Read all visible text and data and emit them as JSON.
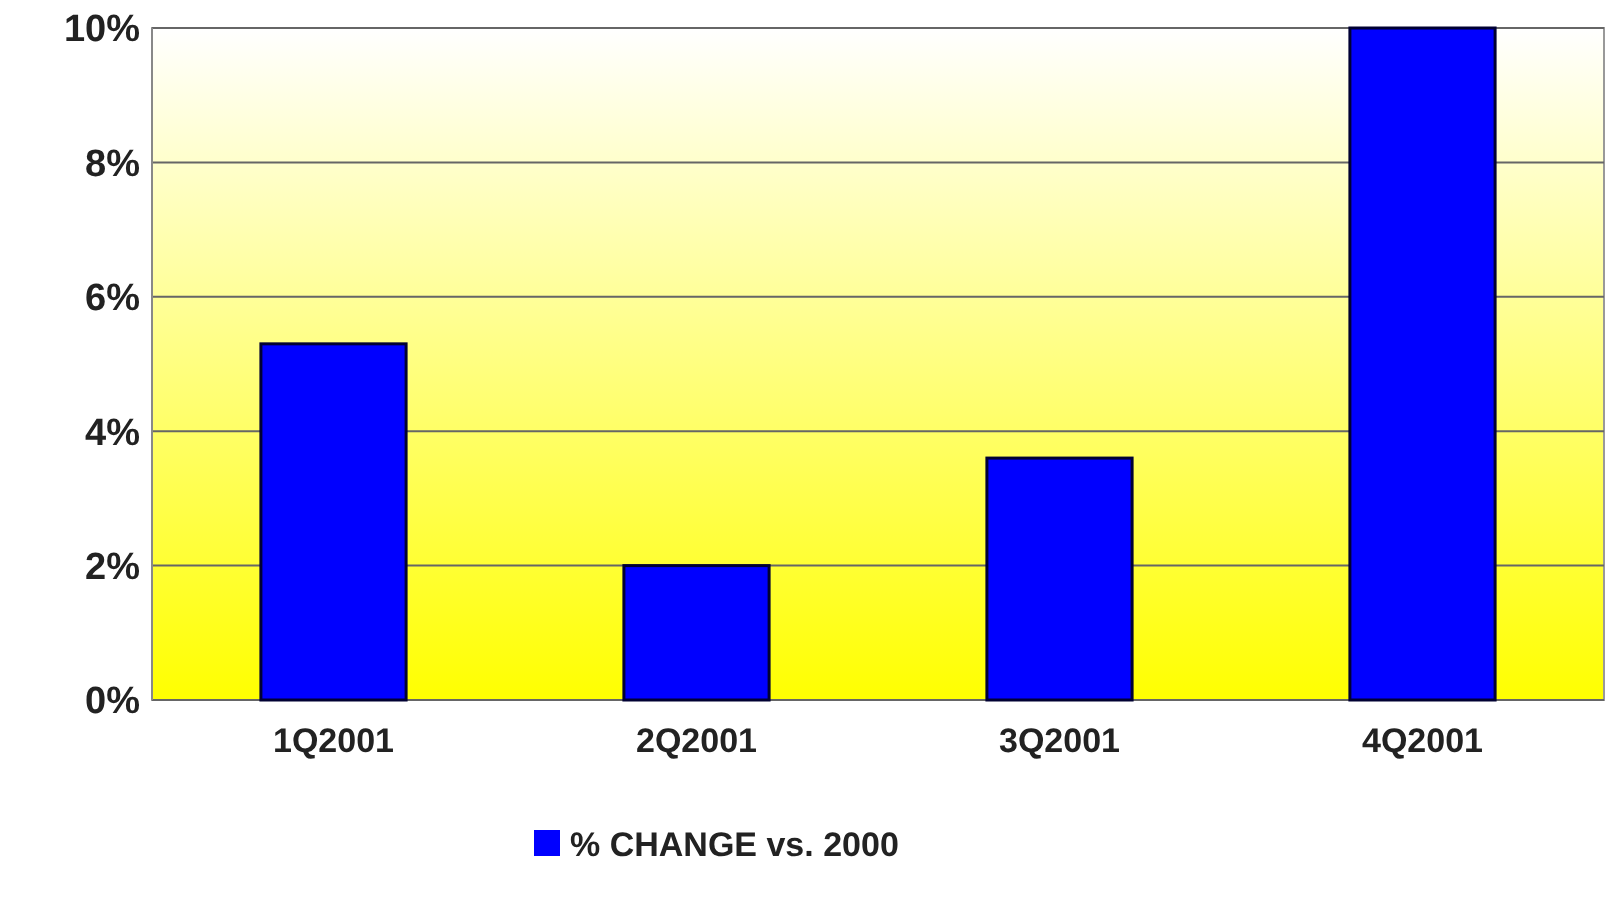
{
  "chart_data": {
    "type": "bar",
    "categories": [
      "1Q2001",
      "2Q2001",
      "3Q2001",
      "4Q2001"
    ],
    "series": [
      {
        "name": "% CHANGE vs. 2000",
        "color": "#0000ff",
        "values": [
          5.3,
          2.0,
          3.6,
          10.0
        ]
      }
    ],
    "ylim": [
      0,
      10
    ],
    "yticks": [
      {
        "value": 0,
        "label": "0%"
      },
      {
        "value": 2,
        "label": "2%"
      },
      {
        "value": 4,
        "label": "4%"
      },
      {
        "value": 6,
        "label": "6%"
      },
      {
        "value": 8,
        "label": "8%"
      },
      {
        "value": 10,
        "label": "10%"
      }
    ],
    "grid": "y",
    "legend": "bottom"
  }
}
